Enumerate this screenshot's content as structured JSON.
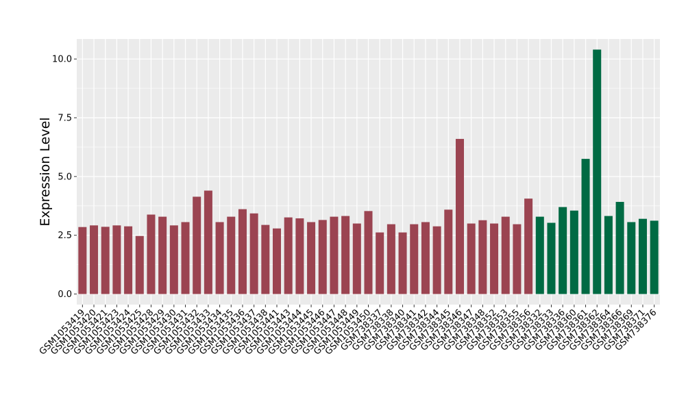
{
  "chart_data": {
    "type": "bar",
    "title": "",
    "xlabel": "",
    "ylabel": "Expression Level",
    "ylim": [
      -0.45,
      10.85
    ],
    "yticks": [
      0.0,
      2.5,
      5.0,
      7.5,
      10.0
    ],
    "ytick_labels": [
      "0.0",
      "2.5",
      "5.0",
      "7.5",
      "10.0"
    ],
    "grid": true,
    "legend": "none",
    "colors": {
      "group_a": "#9b4451",
      "group_b": "#006a43",
      "panel": "#ebebeb",
      "grid": "#ffffff"
    },
    "categories": [
      "GSM1053419",
      "GSM1053420",
      "GSM1053421",
      "GSM1053423",
      "GSM1053424",
      "GSM1053425",
      "GSM1053428",
      "GSM1053429",
      "GSM1053430",
      "GSM1053431",
      "GSM1053432",
      "GSM1053433",
      "GSM1053434",
      "GSM1053435",
      "GSM1053436",
      "GSM1053437",
      "GSM1053438",
      "GSM1053441",
      "GSM1053443",
      "GSM1053444",
      "GSM1053445",
      "GSM1053446",
      "GSM1053447",
      "GSM1053448",
      "GSM1053449",
      "GSM1053450",
      "GSM738337",
      "GSM738338",
      "GSM738340",
      "GSM738341",
      "GSM738342",
      "GSM738344",
      "GSM738345",
      "GSM738346",
      "GSM738347",
      "GSM738348",
      "GSM738352",
      "GSM738353",
      "GSM738355",
      "GSM738356",
      "GSM738332",
      "GSM738333",
      "GSM738336",
      "GSM738360",
      "GSM738361",
      "GSM738362",
      "GSM738364",
      "GSM738366",
      "GSM738369",
      "GSM738371",
      "GSM738376"
    ],
    "values": [
      2.85,
      2.92,
      2.86,
      2.92,
      2.88,
      2.47,
      3.38,
      3.29,
      2.92,
      3.06,
      4.14,
      4.4,
      3.06,
      3.29,
      3.61,
      3.43,
      2.94,
      2.79,
      3.26,
      3.22,
      3.06,
      3.15,
      3.29,
      3.32,
      3.0,
      3.53,
      2.62,
      2.97,
      2.62,
      2.97,
      3.06,
      2.88,
      3.59,
      6.6,
      3.0,
      3.14,
      3.0,
      3.29,
      2.97,
      4.06,
      3.29,
      3.03,
      3.7,
      3.55,
      5.75,
      10.4,
      3.32,
      3.92,
      3.06,
      3.2,
      3.12
    ],
    "groups": [
      "a",
      "a",
      "a",
      "a",
      "a",
      "a",
      "a",
      "a",
      "a",
      "a",
      "a",
      "a",
      "a",
      "a",
      "a",
      "a",
      "a",
      "a",
      "a",
      "a",
      "a",
      "a",
      "a",
      "a",
      "a",
      "a",
      "a",
      "a",
      "a",
      "a",
      "a",
      "a",
      "a",
      "a",
      "a",
      "a",
      "a",
      "a",
      "a",
      "a",
      "b",
      "b",
      "b",
      "b",
      "b",
      "b",
      "b",
      "b",
      "b",
      "b",
      "b"
    ]
  }
}
